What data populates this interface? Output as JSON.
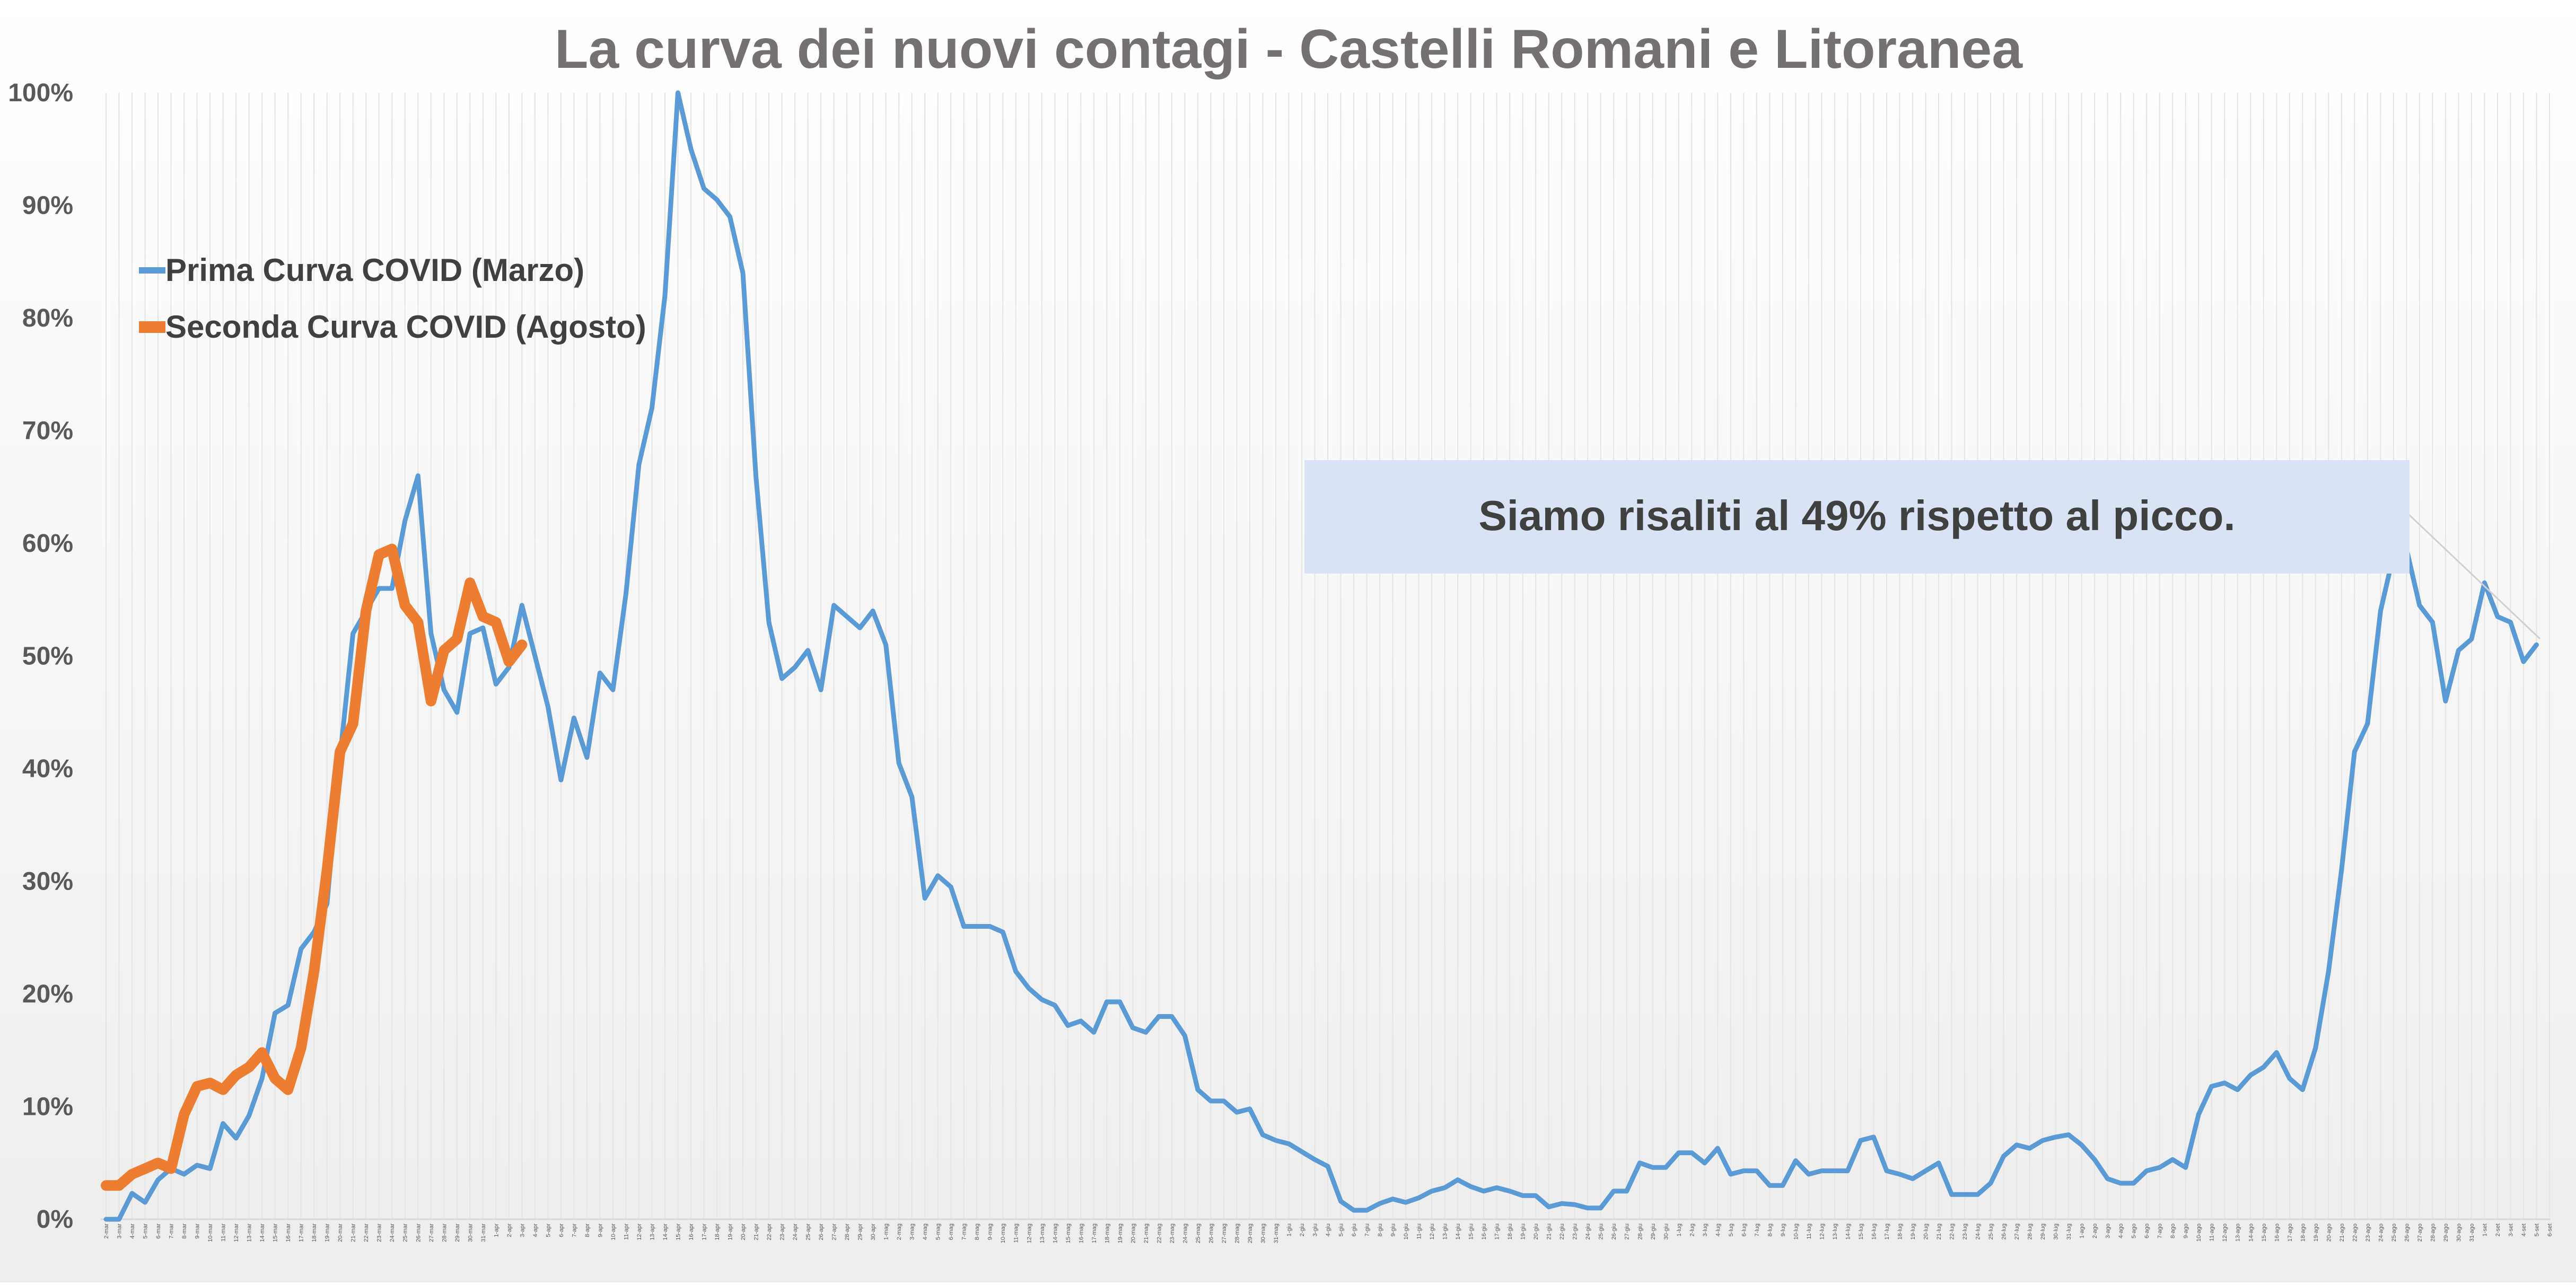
{
  "chart_data": {
    "type": "line",
    "title": "La curva dei nuovi contagi - Castelli Romani e Litoranea",
    "xlabel": "",
    "ylabel": "",
    "ylim": [
      0,
      100
    ],
    "y_ticks": [
      "0%",
      "10%",
      "20%",
      "30%",
      "40%",
      "50%",
      "60%",
      "70%",
      "80%",
      "90%",
      "100%"
    ],
    "grid": "vertical",
    "legend_position": "top-left",
    "x_tick_labels": [
      "2-mar",
      "3-mar",
      "4-mar",
      "5-mar",
      "6-mar",
      "7-mar",
      "8-mar",
      "9-mar",
      "10-mar",
      "11-mar",
      "12-mar",
      "13-mar",
      "14-mar",
      "15-mar",
      "16-mar",
      "17-mar",
      "18-mar",
      "19-mar",
      "20-mar",
      "21-mar",
      "22-mar",
      "23-mar",
      "24-mar",
      "25-mar",
      "26-mar",
      "27-mar",
      "28-mar",
      "29-mar",
      "30-mar",
      "31-mar",
      "1-apr",
      "2-apr",
      "3-apr",
      "4-apr",
      "5-apr",
      "6-apr",
      "7-apr",
      "8-apr",
      "9-apr",
      "10-apr",
      "11-apr",
      "12-apr",
      "13-apr",
      "14-apr",
      "15-apr",
      "16-apr",
      "17-apr",
      "18-apr",
      "19-apr",
      "20-apr",
      "21-apr",
      "22-apr",
      "23-apr",
      "24-apr",
      "25-apr",
      "26-apr",
      "27-apr",
      "28-apr",
      "29-apr",
      "30-apr",
      "1-mag",
      "2-mag",
      "3-mag",
      "4-mag",
      "5-mag",
      "6-mag",
      "7-mag",
      "8-mag",
      "9-mag",
      "10-mag",
      "11-mag",
      "12-mag",
      "13-mag",
      "14-mag",
      "15-mag",
      "16-mag",
      "17-mag",
      "18-mag",
      "19-mag",
      "20-mag",
      "21-mag",
      "22-mag",
      "23-mag",
      "24-mag",
      "25-mag",
      "26-mag",
      "27-mag",
      "28-mag",
      "29-mag",
      "30-mag",
      "31-mag",
      "1-giu",
      "2-giu",
      "3-giu",
      "4-giu",
      "5-giu",
      "6-giu",
      "7-giu",
      "8-giu",
      "9-giu",
      "10-giu",
      "11-giu",
      "12-giu",
      "13-giu",
      "14-giu",
      "15-giu",
      "16-giu",
      "17-giu",
      "18-giu",
      "19-giu",
      "20-giu",
      "21-giu",
      "22-giu",
      "23-giu",
      "24-giu",
      "25-giu",
      "26-giu",
      "27-giu",
      "28-giu",
      "29-giu",
      "30-giu",
      "1-lug",
      "2-lug",
      "3-lug",
      "4-lug",
      "5-lug",
      "6-lug",
      "7-lug",
      "8-lug",
      "9-lug",
      "10-lug",
      "11-lug",
      "12-lug",
      "13-lug",
      "14-lug",
      "15-lug",
      "16-lug",
      "17-lug",
      "18-lug",
      "19-lug",
      "20-lug",
      "21-lug",
      "22-lug",
      "23-lug",
      "24-lug",
      "25-lug",
      "26-lug",
      "27-lug",
      "28-lug",
      "29-lug",
      "30-lug",
      "31-lug",
      "1-ago",
      "2-ago",
      "3-ago",
      "4-ago",
      "5-ago",
      "6-ago",
      "7-ago",
      "8-ago",
      "9-ago",
      "10-ago",
      "11-ago",
      "12-ago",
      "13-ago",
      "14-ago",
      "15-ago",
      "16-ago",
      "17-ago",
      "18-ago",
      "19-ago",
      "20-ago",
      "21-ago",
      "22-ago",
      "23-ago",
      "24-ago",
      "25-ago",
      "26-ago",
      "27-ago",
      "28-ago",
      "29-ago",
      "30-ago",
      "31-ago",
      "1-set",
      "2-set",
      "3-set",
      "4-set",
      "5-set",
      "6-set"
    ],
    "series": [
      {
        "name": "Prima Curva COVID (Marzo)",
        "color": "#5B9BD5",
        "start_index": 0,
        "values": [
          0,
          0,
          2.3,
          1.5,
          3.5,
          4.5,
          4,
          4.8,
          4.5,
          8.5,
          7.2,
          9.2,
          12.5,
          18.3,
          19,
          24,
          25.5,
          28,
          41,
          52,
          54,
          56,
          56,
          62,
          66,
          52,
          47,
          45,
          52,
          52.5,
          47.5,
          49,
          54.5,
          50,
          45.5,
          39,
          44.5,
          41,
          48.5,
          47,
          55.5,
          67,
          72,
          82,
          100,
          95,
          91.5,
          90.5,
          89,
          84,
          66,
          53,
          48,
          49,
          50.5,
          47,
          54.5,
          53.5,
          52.5,
          54,
          51,
          40.5,
          37.5,
          28.5,
          30.5,
          29.5,
          26,
          26,
          26,
          25.5,
          22,
          20.5,
          19.5,
          19,
          17.2,
          17.6,
          16.6,
          19.3,
          19.3,
          17,
          16.6,
          18,
          18,
          16.3,
          11.5,
          10.5,
          10.5,
          9.5,
          9.8,
          7.5,
          7,
          6.7,
          6,
          5.3,
          4.7,
          1.6,
          0.8,
          0.8,
          1.4,
          1.8,
          1.5,
          1.9,
          2.5,
          2.8,
          3.5,
          2.9,
          2.5,
          2.8,
          2.5,
          2.1,
          2.1,
          1.1,
          1.4,
          1.3,
          1,
          1,
          2.5,
          2.5,
          5,
          4.6,
          4.6,
          5.9,
          5.9,
          5,
          6.3,
          4,
          4.3,
          4.3,
          3,
          3,
          5.2,
          4,
          4.3,
          4.3,
          4.3,
          7,
          7.3,
          4.3,
          4,
          3.6,
          4.3,
          5,
          2.2,
          2.2,
          2.2,
          3.2,
          5.6,
          6.6,
          6.3,
          7,
          7.3,
          7.5,
          6.6,
          5.3,
          3.6,
          3.2,
          3.2,
          4.3,
          4.6,
          5.3,
          4.6,
          9.3,
          11.8,
          12.1,
          11.5,
          12.8,
          13.5,
          14.8,
          12.5,
          11.5,
          15.2,
          22,
          31,
          41.5,
          44,
          54,
          59,
          59.5,
          54.5,
          53,
          46,
          50.5,
          51.5,
          56.5,
          53.5,
          53,
          49.5,
          51
        ]
      },
      {
        "name": "Seconda Curva COVID (Agosto)",
        "color": "#ED7D31",
        "start_index": 0,
        "values": [
          3,
          3,
          4,
          4.5,
          5,
          4.5,
          9.3,
          11.8,
          12.1,
          11.5,
          12.8,
          13.5,
          14.8,
          12.5,
          11.5,
          15.2,
          22,
          31,
          41.5,
          44,
          54,
          59,
          59.5,
          54.5,
          53,
          46,
          50.5,
          51.5,
          56.5,
          53.5,
          53,
          49.5,
          51
        ]
      }
    ],
    "annotations": [
      "Siamo risaliti al 49% rispetto al picco."
    ]
  }
}
